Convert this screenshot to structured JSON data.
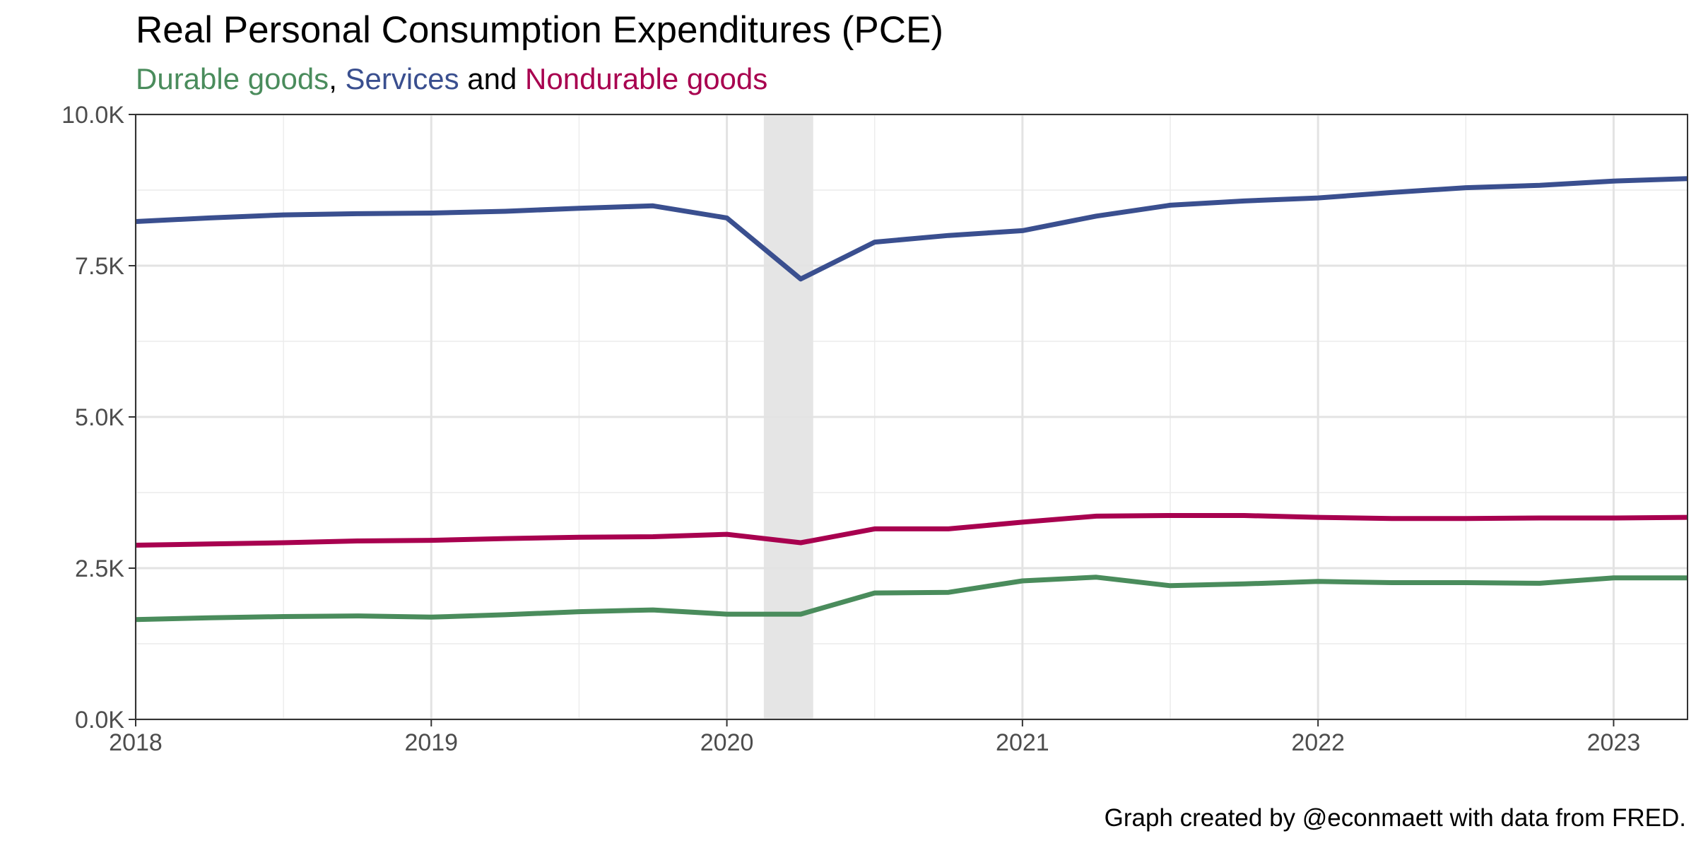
{
  "chart_data": {
    "type": "line",
    "title": "Real Personal Consumption Expenditures (PCE)",
    "subtitle": {
      "parts": [
        {
          "text": "Durable goods",
          "color": "#4a8c5c"
        },
        {
          "text": ", ",
          "color": "#000000"
        },
        {
          "text": "Services",
          "color": "#3a4f8f"
        },
        {
          "text": " and ",
          "color": "#000000"
        },
        {
          "text": "Nondurable goods",
          "color": "#a8004f"
        }
      ]
    },
    "caption": "Graph created by @econmaett with data from FRED.",
    "xlabel": "",
    "ylabel": "",
    "xlim": [
      2018.0,
      2023.25
    ],
    "ylim": [
      0,
      10000
    ],
    "x_ticks": [
      2018,
      2019,
      2020,
      2021,
      2022,
      2023
    ],
    "x_tick_labels": [
      "2018",
      "2019",
      "2020",
      "2021",
      "2022",
      "2023"
    ],
    "y_ticks": [
      0,
      2500,
      5000,
      7500,
      10000
    ],
    "y_tick_labels": [
      "0.0K",
      "2.5K",
      "5.0K",
      "7.5K",
      "10.0K"
    ],
    "grid": true,
    "recession_band": {
      "x_start": 2020.125,
      "x_end": 2020.292,
      "color": "#e5e5e5"
    },
    "x": [
      2018.0,
      2018.25,
      2018.5,
      2018.75,
      2019.0,
      2019.25,
      2019.5,
      2019.75,
      2020.0,
      2020.25,
      2020.5,
      2020.75,
      2021.0,
      2021.25,
      2021.5,
      2021.75,
      2022.0,
      2022.25,
      2022.5,
      2022.75,
      2023.0,
      2023.25
    ],
    "series": [
      {
        "name": "Services",
        "color": "#3a4f8f",
        "values": [
          8230,
          8290,
          8340,
          8360,
          8370,
          8400,
          8450,
          8490,
          8290,
          7280,
          7890,
          8000,
          8080,
          8320,
          8500,
          8570,
          8620,
          8710,
          8790,
          8830,
          8900,
          8940
        ]
      },
      {
        "name": "Nondurable goods",
        "color": "#a8004f",
        "values": [
          2880,
          2900,
          2920,
          2950,
          2960,
          2990,
          3010,
          3020,
          3060,
          2920,
          3150,
          3150,
          3260,
          3360,
          3370,
          3370,
          3340,
          3320,
          3320,
          3330,
          3330,
          3340
        ]
      },
      {
        "name": "Durable goods",
        "color": "#4a8c5c",
        "values": [
          1650,
          1680,
          1700,
          1710,
          1690,
          1730,
          1780,
          1810,
          1740,
          1740,
          2090,
          2100,
          2290,
          2350,
          2210,
          2240,
          2280,
          2260,
          2260,
          2250,
          2340,
          2340
        ]
      }
    ]
  }
}
